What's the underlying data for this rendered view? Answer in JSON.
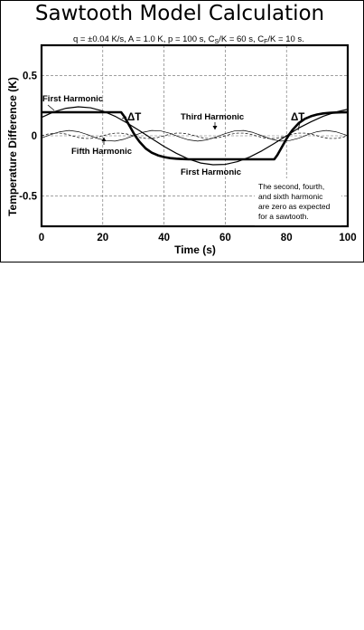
{
  "page_title": "Sawtooth Model Calculation",
  "params_text": "q = ±0.04 K/s,  A = 1.0 K,  p = 100 s, ",
  "params_sub": {
    "cs_main": "C",
    "cs_sub": "S",
    "cs_rest": "/K = 60 s,   ",
    "cf_main": "C",
    "cf_sub": "F",
    "cf_rest": "/K = 10 s."
  },
  "chart_data": {
    "type": "line",
    "title": "Sawtooth Model Calculation",
    "xlabel": "Time  (s)",
    "ylabel": "Temperature Difference  (K)",
    "xlim": [
      0,
      100
    ],
    "ylim": [
      -0.75,
      0.75
    ],
    "xticks": [
      0,
      20,
      40,
      60,
      80,
      100
    ],
    "xtick_labels": [
      "0",
      "20",
      "40",
      "60",
      "80",
      "100"
    ],
    "yticks": [
      0.5,
      0,
      -0.5
    ],
    "ytick_labels": [
      "0.5",
      "0",
      "-0.5"
    ],
    "grid": true,
    "series": [
      {
        "name": "ΔT",
        "style": "thick",
        "x": [
          0,
          26,
          27,
          28,
          29,
          30,
          31,
          32,
          34,
          36,
          38,
          40,
          42,
          44,
          46,
          48,
          76,
          77,
          78,
          79,
          80,
          81,
          82,
          84,
          86,
          88,
          90,
          92,
          94,
          96,
          98,
          100
        ],
        "y": [
          0.195,
          0.195,
          0.16,
          0.115,
          0.07,
          0.025,
          -0.015,
          -0.05,
          -0.105,
          -0.14,
          -0.162,
          -0.176,
          -0.185,
          -0.19,
          -0.193,
          -0.195,
          -0.195,
          -0.16,
          -0.115,
          -0.07,
          -0.025,
          0.015,
          0.05,
          0.105,
          0.14,
          0.162,
          0.176,
          0.185,
          0.19,
          0.193,
          0.194,
          0.195
        ]
      },
      {
        "name": "First Harmonic",
        "style": "medium",
        "x": [
          0,
          4,
          8,
          12,
          16,
          20,
          24,
          28,
          32,
          36,
          40,
          44,
          48,
          52,
          56,
          60,
          64,
          68,
          72,
          76,
          80,
          84,
          88,
          92,
          96,
          100
        ],
        "y": [
          0.152,
          0.198,
          0.228,
          0.24,
          0.232,
          0.205,
          0.162,
          0.105,
          0.042,
          -0.023,
          -0.088,
          -0.145,
          -0.193,
          -0.226,
          -0.24,
          -0.237,
          -0.214,
          -0.176,
          -0.124,
          -0.064,
          0.0,
          0.064,
          0.116,
          0.162,
          0.196,
          0.22
        ]
      },
      {
        "name": "Third Harmonic",
        "style": "thin",
        "x": [
          0,
          3,
          6,
          9,
          12,
          15,
          18,
          21,
          24,
          27,
          30,
          33,
          36,
          39,
          42,
          45,
          48,
          51,
          54,
          57,
          60,
          63,
          66,
          69,
          72,
          75,
          78,
          81,
          84,
          87,
          90,
          93,
          96,
          99,
          100
        ],
        "y": [
          -0.018,
          0.01,
          0.033,
          0.044,
          0.034,
          0.01,
          -0.02,
          -0.04,
          -0.044,
          -0.028,
          0.0,
          0.028,
          0.044,
          0.04,
          0.02,
          -0.01,
          -0.034,
          -0.044,
          -0.034,
          -0.01,
          0.018,
          0.04,
          0.044,
          0.028,
          0.0,
          -0.028,
          -0.044,
          -0.04,
          -0.02,
          0.01,
          0.034,
          0.044,
          0.034,
          0.01,
          0.0
        ]
      },
      {
        "name": "Fifth Harmonic",
        "style": "dashed",
        "x": [
          0,
          2,
          4,
          6,
          8,
          10,
          12,
          14,
          16,
          18,
          20,
          22,
          24,
          26,
          28,
          30,
          32,
          34,
          36,
          38,
          40,
          42,
          44,
          46,
          48,
          50,
          52,
          54,
          56,
          58,
          60,
          62,
          64,
          66,
          68,
          70,
          72,
          74,
          76,
          78,
          80,
          82,
          84,
          86,
          88,
          90,
          92,
          94,
          96,
          98,
          100
        ],
        "y": [
          0.0,
          0.014,
          0.022,
          0.022,
          0.014,
          0.0,
          -0.014,
          -0.022,
          -0.022,
          -0.014,
          0.0,
          0.014,
          0.022,
          0.022,
          0.014,
          0.0,
          -0.014,
          -0.022,
          -0.022,
          -0.014,
          0.0,
          0.014,
          0.022,
          0.022,
          0.014,
          0.0,
          -0.014,
          -0.022,
          -0.022,
          -0.014,
          0.0,
          0.014,
          0.022,
          0.022,
          0.014,
          0.0,
          -0.014,
          -0.022,
          -0.022,
          -0.014,
          0.0,
          0.014,
          0.022,
          0.022,
          0.014,
          0.0,
          -0.014,
          -0.022,
          -0.022,
          -0.014,
          0.0
        ]
      }
    ],
    "annotations": {
      "first_harmonic_top": "First Harmonic",
      "delta_t_left": "ΔT",
      "third_harmonic": "Third Harmonic",
      "delta_t_right": "ΔT",
      "fifth_harmonic": "Fifth Harmonic",
      "first_harmonic_bottom": "First Harmonic",
      "note_lines": [
        "The  second,  fourth,",
        "and  sixth  harmonic",
        "are zero as expected",
        "for a sawtooth."
      ]
    }
  }
}
